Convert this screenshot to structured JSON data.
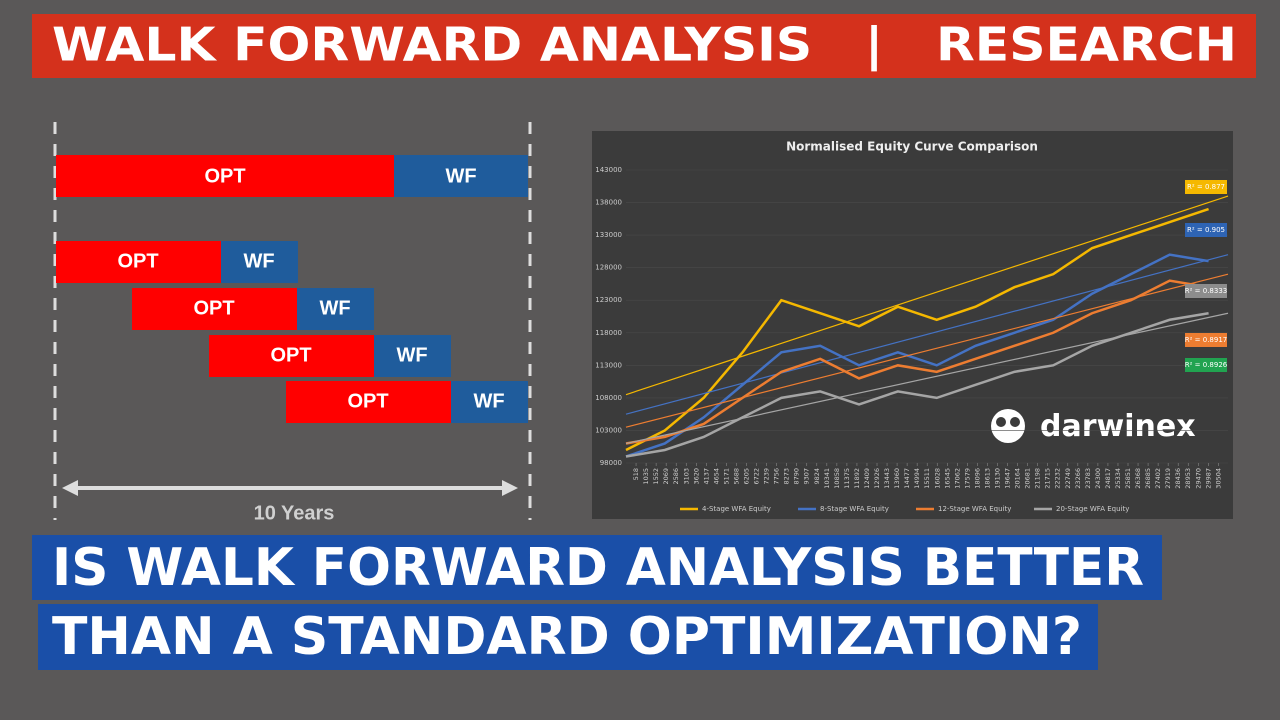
{
  "header": {
    "title": "WALK FORWARD ANALYSIS   |   RESEARCH"
  },
  "diagram": {
    "opt": "OPT",
    "wf": "WF",
    "span": "10 Years"
  },
  "headline": {
    "lines": [
      "IS WALK FORWARD ANALYSIS BETTER",
      "THAN A STANDARD OPTIMIZATION?"
    ]
  },
  "logo": "darwinex",
  "chart": {
    "type": "line",
    "title": "Normalised Equity Curve Comparison",
    "x": [
      0,
      2000,
      4000,
      6000,
      8000,
      10000,
      12000,
      14000,
      16000,
      18000,
      20000,
      22000,
      24000,
      26000,
      28000,
      30000
    ],
    "xlim": [
      0,
      31000
    ],
    "xticks": [
      518,
      1035,
      1552,
      2069,
      2586,
      3103,
      3620,
      4137,
      4654,
      5171,
      5688,
      6205,
      6722,
      7239,
      7756,
      8273,
      8790,
      9307,
      9824,
      10341,
      10858,
      11375,
      11892,
      12409,
      12926,
      13443,
      13960,
      14477,
      14994,
      15511,
      16028,
      16545,
      17062,
      17579,
      18096,
      18613,
      19130,
      19647,
      20164,
      20681,
      21198,
      21715,
      22232,
      22749,
      23266,
      23783,
      24300,
      24817,
      25334,
      25851,
      26368,
      26885,
      27402,
      27919,
      28436,
      28953,
      29470,
      29987,
      30504
    ],
    "ylim": [
      98000,
      143000
    ],
    "yticks": [
      98000,
      103000,
      108000,
      113000,
      118000,
      123000,
      128000,
      133000,
      138000,
      143000
    ],
    "series": [
      {
        "name": "4-Stage WFA Equity",
        "color": "#f5b800",
        "values": [
          100000,
          103000,
          108000,
          115000,
          123000,
          121000,
          119000,
          122000,
          120000,
          122000,
          125000,
          127000,
          131000,
          133000,
          135000,
          137000
        ],
        "trend": [
          108500,
          139000
        ]
      },
      {
        "name": "8-Stage WFA Equity",
        "color": "#4472c4",
        "values": [
          99000,
          101000,
          105000,
          110000,
          115000,
          116000,
          113000,
          115000,
          113000,
          116000,
          118000,
          120000,
          124000,
          127000,
          130000,
          129000
        ],
        "trend": [
          105500,
          130000
        ]
      },
      {
        "name": "12-Stage WFA Equity",
        "color": "#ed7d31",
        "values": [
          101000,
          102000,
          104000,
          108000,
          112000,
          114000,
          111000,
          113000,
          112000,
          114000,
          116000,
          118000,
          121000,
          123000,
          126000,
          125000
        ],
        "trend": [
          103500,
          127000
        ]
      },
      {
        "name": "20-Stage WFA Equity",
        "color": "#a5a5a5",
        "values": [
          99000,
          100000,
          102000,
          105000,
          108000,
          109000,
          107000,
          109000,
          108000,
          110000,
          112000,
          113000,
          116000,
          118000,
          120000,
          121000
        ],
        "trend": [
          101000,
          121000
        ]
      }
    ],
    "annotations": [
      {
        "text": "R² = 0.877",
        "color": "#f5b800"
      },
      {
        "text": "R² = 0.905",
        "color": "#2e64b4"
      },
      {
        "text": "R² = 0.8333",
        "color": "#8c8c8c"
      },
      {
        "text": "R² = 0.8917",
        "color": "#ed7d31"
      },
      {
        "text": "R² = 0.8926",
        "color": "#21a350"
      }
    ]
  }
}
